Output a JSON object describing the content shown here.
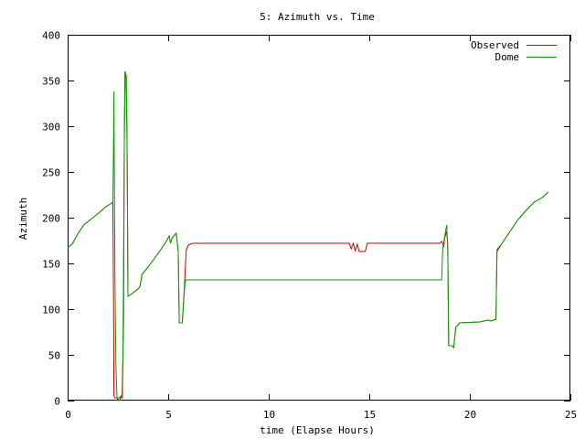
{
  "chart_data": {
    "type": "line",
    "title": "5: Azimuth vs. Time",
    "xlabel": "time (Elapse Hours)",
    "ylabel": "Azimuth",
    "xlim": [
      0,
      25
    ],
    "ylim": [
      0,
      400
    ],
    "xticks": [
      0,
      5,
      10,
      15,
      20,
      25
    ],
    "yticks": [
      0,
      50,
      100,
      150,
      200,
      250,
      300,
      350,
      400
    ],
    "grid": false,
    "legend_position": "top-right",
    "series": [
      {
        "name": "Observed",
        "color": "#cc0000",
        "points": [
          [
            0,
            167
          ],
          [
            0.25,
            172
          ],
          [
            0.5,
            182
          ],
          [
            0.8,
            192
          ],
          [
            1.2,
            199
          ],
          [
            1.6,
            206
          ],
          [
            1.9,
            212
          ],
          [
            2.2,
            216
          ],
          [
            2.25,
            217
          ],
          [
            2.28,
            110
          ],
          [
            2.3,
            5
          ],
          [
            2.35,
            3
          ],
          [
            2.45,
            3
          ],
          [
            2.52,
            0
          ],
          [
            2.6,
            1
          ],
          [
            2.65,
            5
          ],
          [
            2.72,
            2
          ],
          [
            2.78,
            90
          ],
          [
            2.82,
            290
          ],
          [
            2.85,
            358
          ],
          [
            2.9,
            356
          ],
          [
            2.95,
            300
          ],
          [
            3.0,
            114
          ],
          [
            3.2,
            117
          ],
          [
            3.5,
            122
          ],
          [
            3.6,
            125
          ],
          [
            3.7,
            138
          ],
          [
            4.0,
            146
          ],
          [
            4.3,
            155
          ],
          [
            4.6,
            164
          ],
          [
            4.9,
            174
          ],
          [
            5.05,
            180
          ],
          [
            5.12,
            172
          ],
          [
            5.2,
            178
          ],
          [
            5.4,
            183
          ],
          [
            5.5,
            163
          ],
          [
            5.55,
            85
          ],
          [
            5.7,
            85
          ],
          [
            5.8,
            122
          ],
          [
            5.9,
            165
          ],
          [
            6.0,
            170
          ],
          [
            6.2,
            172
          ],
          [
            14.0,
            172
          ],
          [
            14.1,
            166
          ],
          [
            14.2,
            172
          ],
          [
            14.3,
            164
          ],
          [
            14.4,
            171
          ],
          [
            14.5,
            163
          ],
          [
            14.8,
            163
          ],
          [
            14.9,
            172
          ],
          [
            18.5,
            172
          ],
          [
            18.6,
            174
          ],
          [
            18.7,
            168
          ],
          [
            18.75,
            178
          ],
          [
            18.85,
            185
          ],
          [
            18.9,
            170
          ],
          [
            18.95,
            60
          ],
          [
            19.1,
            60
          ],
          [
            19.2,
            58
          ],
          [
            19.3,
            80
          ],
          [
            19.5,
            85
          ],
          [
            20.5,
            86
          ],
          [
            20.9,
            88
          ],
          [
            21.05,
            87
          ],
          [
            21.3,
            89
          ],
          [
            21.35,
            163
          ],
          [
            21.6,
            172
          ],
          [
            22.0,
            185
          ],
          [
            22.4,
            198
          ],
          [
            22.8,
            208
          ],
          [
            23.2,
            217
          ],
          [
            23.6,
            222
          ],
          [
            23.9,
            228
          ]
        ]
      },
      {
        "name": "Dome",
        "color": "#00a000",
        "points": [
          [
            0,
            167
          ],
          [
            0.25,
            172
          ],
          [
            0.5,
            182
          ],
          [
            0.8,
            192
          ],
          [
            1.2,
            199
          ],
          [
            1.6,
            206
          ],
          [
            1.9,
            212
          ],
          [
            2.2,
            216
          ],
          [
            2.25,
            217
          ],
          [
            2.28,
            280
          ],
          [
            2.3,
            338
          ],
          [
            2.35,
            140
          ],
          [
            2.4,
            40
          ],
          [
            2.45,
            5
          ],
          [
            2.5,
            1
          ],
          [
            2.6,
            4
          ],
          [
            2.7,
            3
          ],
          [
            2.75,
            50
          ],
          [
            2.82,
            280
          ],
          [
            2.86,
            360
          ],
          [
            2.92,
            355
          ],
          [
            2.97,
            250
          ],
          [
            3.0,
            114
          ],
          [
            3.2,
            117
          ],
          [
            3.5,
            122
          ],
          [
            3.6,
            125
          ],
          [
            3.7,
            138
          ],
          [
            4.0,
            146
          ],
          [
            4.3,
            155
          ],
          [
            4.6,
            164
          ],
          [
            4.9,
            174
          ],
          [
            5.05,
            180
          ],
          [
            5.12,
            172
          ],
          [
            5.2,
            178
          ],
          [
            5.4,
            183
          ],
          [
            5.5,
            163
          ],
          [
            5.55,
            85
          ],
          [
            5.7,
            85
          ],
          [
            5.8,
            118
          ],
          [
            5.85,
            132
          ],
          [
            6.0,
            132
          ],
          [
            18.6,
            132
          ],
          [
            18.65,
            165
          ],
          [
            18.75,
            180
          ],
          [
            18.85,
            192
          ],
          [
            18.9,
            170
          ],
          [
            18.95,
            60
          ],
          [
            19.1,
            60
          ],
          [
            19.2,
            58
          ],
          [
            19.3,
            80
          ],
          [
            19.5,
            85
          ],
          [
            20.5,
            86
          ],
          [
            20.9,
            88
          ],
          [
            21.05,
            87
          ],
          [
            21.3,
            89
          ],
          [
            21.35,
            165
          ],
          [
            21.6,
            172
          ],
          [
            22.0,
            185
          ],
          [
            22.4,
            198
          ],
          [
            22.8,
            208
          ],
          [
            23.2,
            217
          ],
          [
            23.6,
            222
          ],
          [
            23.9,
            228
          ]
        ]
      }
    ]
  }
}
